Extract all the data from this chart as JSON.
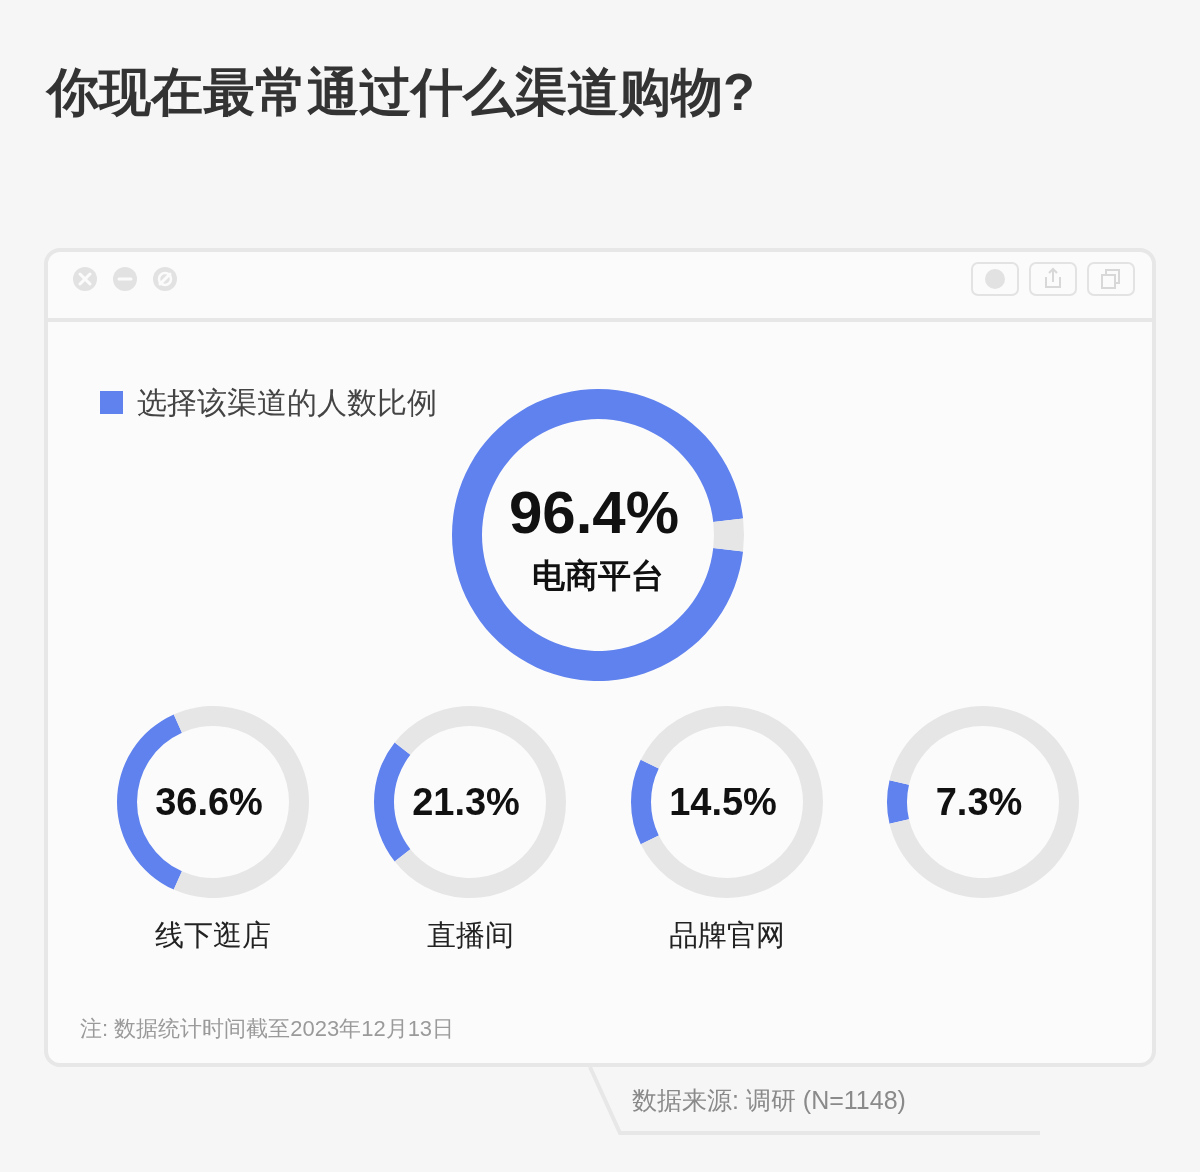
{
  "chart_data": [
    {
      "type": "donut",
      "title": "你现在最常通过什么渠道购物?",
      "subtitle": "电商平台",
      "categories": [
        "选择该渠道的人数比例",
        null
      ],
      "values": [
        96.4,
        3.6
      ],
      "colors": [
        "#5f82ee",
        "#e6e6e6"
      ],
      "value_labels": [
        "96.4%",
        null
      ],
      "legend": "top left",
      "annotations": [
        "注: 数据统计时间截至2023年12月13日",
        "数据来源: 调研 (N=1148)"
      ]
    },
    {
      "type": "donut",
      "title": "线下逛店",
      "categories": [
        null,
        null
      ],
      "values": [
        36.6,
        63.4
      ],
      "colors": [
        "#5f82ee",
        "#e6e6e6"
      ],
      "value_labels": [
        "36.6%",
        null
      ]
    },
    {
      "type": "donut",
      "title": "直播间",
      "categories": [
        null,
        null
      ],
      "values": [
        21.3,
        78.7
      ],
      "colors": [
        "#5f82ee",
        "#e6e6e6"
      ],
      "value_labels": [
        "21.3%",
        null
      ]
    },
    {
      "type": "donut",
      "title": "品牌官网",
      "categories": [
        null,
        null
      ],
      "values": [
        14.5,
        85.5
      ],
      "colors": [
        "#5f82ee",
        "#e6e6e6"
      ],
      "value_labels": [
        "14.5%",
        null
      ]
    },
    {
      "type": "donut",
      "categories": [
        null,
        null
      ],
      "values": [
        7.3,
        92.7
      ],
      "colors": [
        "#5f82ee",
        "#e6e6e6"
      ],
      "value_labels": [
        "7.3%",
        null
      ]
    }
  ]
}
